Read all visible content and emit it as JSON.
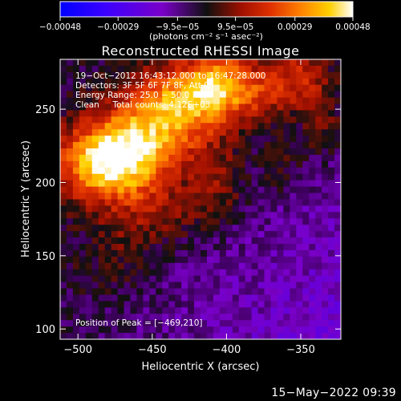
{
  "chart_data": {
    "type": "heatmap",
    "title": "Reconstructed RHESSI Image",
    "xlabel": "Heliocentric X (arcsec)",
    "ylabel": "Heliocentric Y (arcsec)",
    "xlim": [
      -512,
      -323
    ],
    "ylim": [
      93,
      284
    ],
    "xticks": [
      -500,
      -450,
      -400,
      -350
    ],
    "yticks": [
      100,
      150,
      200,
      250
    ],
    "xtick_labels": [
      "−500",
      "−450",
      "−400",
      "−350"
    ],
    "ytick_labels": [
      "100",
      "150",
      "200",
      "250"
    ],
    "colorbar": {
      "min": -0.00048,
      "max": 0.00048,
      "ticks": [
        -0.00048,
        -0.00029,
        -9.5e-05,
        9.5e-05,
        0.00029,
        0.00048
      ],
      "tick_labels": [
        "−0.00048",
        "−0.00029",
        "−9.5e−05",
        "9.5e−05",
        "0.00029",
        "0.00048"
      ],
      "units_label": "(photons cm⁻² s⁻¹ asec⁻²)"
    },
    "annotations": [
      "19−Oct−2012 16:43:12.000 to 16:47:28.000",
      "Detectors: 3F 5F 6F 7F 8F, Att 0",
      "Energy Range: 25.0 − 50.0 keV",
      "Clean     Total counts: 4.12E+03"
    ],
    "peak_label": "Position of Peak = [−469,210]",
    "peak": [
      -469,
      210
    ],
    "emission_sources": [
      {
        "x": -480,
        "y": 212,
        "sx": 24,
        "sy": 18,
        "amp": 0.00046
      },
      {
        "x": -455,
        "y": 232,
        "sx": 26,
        "sy": 20,
        "amp": 0.0003
      },
      {
        "x": -428,
        "y": 258,
        "sx": 22,
        "sy": 18,
        "amp": 0.00033
      },
      {
        "x": -405,
        "y": 268,
        "sx": 14,
        "sy": 16,
        "amp": 0.00024
      },
      {
        "x": -378,
        "y": 262,
        "sx": 18,
        "sy": 16,
        "amp": 0.00019
      },
      {
        "x": -350,
        "y": 272,
        "sx": 14,
        "sy": 14,
        "amp": 0.00016
      },
      {
        "x": -405,
        "y": 200,
        "sx": 14,
        "sy": 20,
        "amp": 0.00014
      },
      {
        "x": -445,
        "y": 178,
        "sx": 22,
        "sy": 16,
        "amp": 0.00013
      },
      {
        "x": -475,
        "y": 150,
        "sx": 18,
        "sy": 20,
        "amp": 8e-05
      },
      {
        "x": -362,
        "y": 210,
        "sx": 10,
        "sy": 14,
        "amp": 0.0001
      },
      {
        "x": -335,
        "y": 240,
        "sx": 10,
        "sy": 18,
        "amp": 0.00012
      }
    ],
    "background_level": -8e-05
  },
  "footer": {
    "date": "15−May−2022 09:39"
  }
}
